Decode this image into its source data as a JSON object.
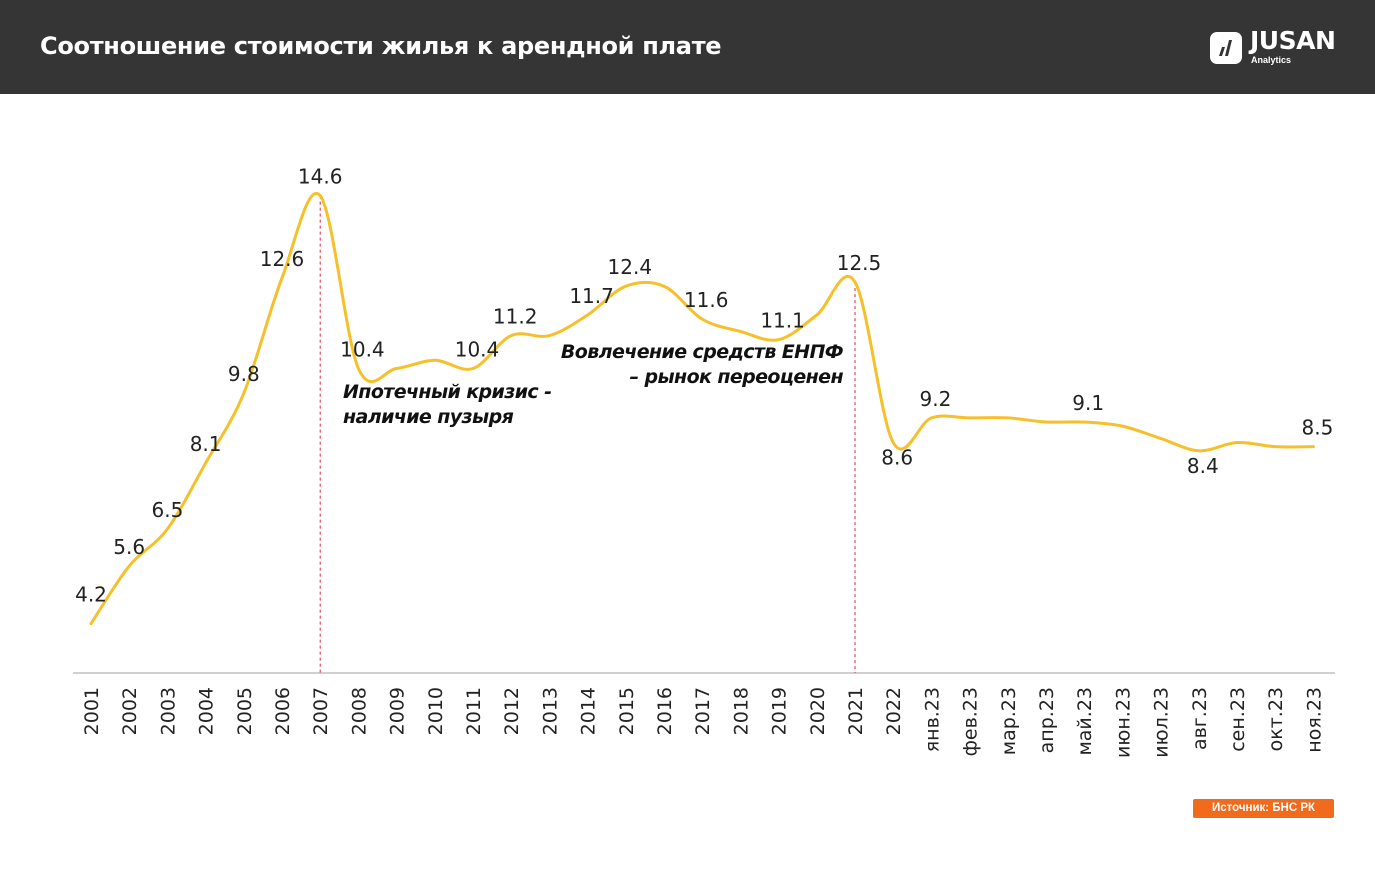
{
  "header": {
    "title": "Соотношение стоимости жилья к арендной плате",
    "logo_text": "JUSAN",
    "logo_subtext": "Analytics"
  },
  "source": "Источник: БНС РК",
  "chart_data": {
    "type": "line",
    "categories": [
      "2001",
      "2002",
      "2003",
      "2004",
      "2005",
      "2006",
      "2007",
      "2008",
      "2009",
      "2010",
      "2011",
      "2012",
      "2013",
      "2014",
      "2015",
      "2016",
      "2017",
      "2018",
      "2019",
      "2020",
      "2021",
      "2022",
      "янв.23",
      "фев.23",
      "мар.23",
      "апр.23",
      "май.23",
      "июн.23",
      "июл.23",
      "авг.23",
      "сен.23",
      "окт.23",
      "ноя.23"
    ],
    "values": [
      4.2,
      5.6,
      6.5,
      8.1,
      9.8,
      12.6,
      14.6,
      10.4,
      10.4,
      10.6,
      10.4,
      11.2,
      11.2,
      11.7,
      12.4,
      12.4,
      11.6,
      11.3,
      11.1,
      11.7,
      12.5,
      8.6,
      9.2,
      9.2,
      9.2,
      9.1,
      9.1,
      9.0,
      8.7,
      8.4,
      8.6,
      8.5,
      8.5
    ],
    "data_labels": [
      "4.2",
      "5.6",
      "6.5",
      "8.1",
      "9.8",
      "12.6",
      "14.6",
      "10.4",
      null,
      null,
      "10.4",
      "11.2",
      null,
      "11.7",
      "12.4",
      null,
      "11.6",
      null,
      "11.1",
      null,
      "12.5",
      "8.6",
      "9.2",
      null,
      null,
      null,
      "9.1",
      null,
      null,
      "8.4",
      null,
      null,
      "8.5"
    ],
    "ylim": [
      3,
      15.5
    ],
    "grid": false,
    "line_color": "#f5c02a",
    "marker_line_color": "#d9263a",
    "annotations": [
      {
        "category": "2007",
        "text": [
          "Ипотечный кризис -",
          "наличие пузыря"
        ]
      },
      {
        "category": "2021",
        "text": [
          "Вовлечение средств ЕНПФ",
          "– рынок переоценен"
        ]
      }
    ]
  },
  "colors": {
    "header_bg": "#353535",
    "source_bg": "#f26a1b"
  }
}
